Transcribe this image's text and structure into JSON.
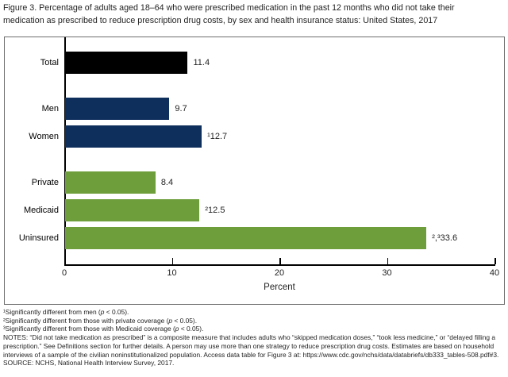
{
  "figure_title": {
    "line1": "Figure 3. Percentage of adults aged 18–64 who were prescribed medication in the past 12 months who did not take their",
    "line2": "medication as prescribed to reduce prescription drug costs, by sex and health insurance status: United States, 2017"
  },
  "chart_data": {
    "type": "bar",
    "orientation": "horizontal",
    "title": "Figure 3. Percentage of adults aged 18–64 who were prescribed medication in the past 12 months who did not take their medication as prescribed to reduce prescription drug costs, by sex and health insurance status: United States, 2017",
    "xlabel": "Percent",
    "xlim": [
      0,
      40
    ],
    "xticks": [
      "0",
      "10",
      "20",
      "30",
      "40"
    ],
    "grid": false,
    "legend": "none",
    "categories": [
      "Total",
      "Men",
      "Women",
      "Private",
      "Medicaid",
      "Uninsured"
    ],
    "values": [
      11.4,
      9.7,
      12.7,
      8.4,
      12.5,
      33.6
    ],
    "colors": {
      "total": "#000000",
      "sex": "#0e2e5c",
      "insurance": "#6e9e3c"
    },
    "bars": [
      {
        "category": "Total",
        "value": 11.4,
        "value_label": "11.4",
        "group": "total"
      },
      {
        "category": "Men",
        "value": 9.7,
        "value_label": "9.7",
        "group": "sex"
      },
      {
        "category": "Women",
        "value": 12.7,
        "value_label": "¹12.7",
        "group": "sex"
      },
      {
        "category": "Private",
        "value": 8.4,
        "value_label": "8.4",
        "group": "insurance"
      },
      {
        "category": "Medicaid",
        "value": 12.5,
        "value_label": "²12.5",
        "group": "insurance"
      },
      {
        "category": "Uninsured",
        "value": 33.6,
        "value_label": "²,³33.6",
        "group": "insurance"
      }
    ]
  },
  "footnotes": [
    "¹Significantly different from men (p < 0.05).",
    "²Significantly different from those with private coverage (p < 0.05).",
    "³Significantly different from those with Medicaid coverage (p < 0.05).",
    "NOTES: “Did not take medication as prescribed” is a composite measure that includes adults who “skipped medication doses,” “took less medicine,” or “delayed filling a prescription.” See Definitions section for further details. A person may use more than one strategy to reduce prescription drug costs. Estimates are based on household interviews of a sample of the civilian noninstitutionalized population. Access data table for Figure 3 at: https://www.cdc.gov/nchs/data/databriefs/db333_tables-508.pdf#3.",
    "SOURCE: NCHS, National Health Interview Survey, 2017."
  ]
}
